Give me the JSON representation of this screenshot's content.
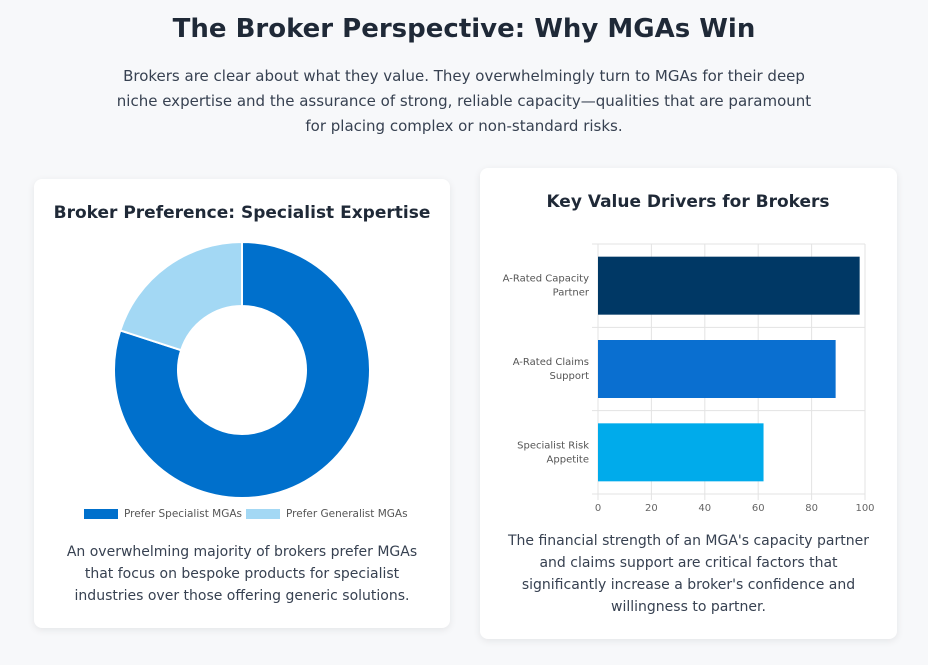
{
  "header": {
    "title": "The Broker Perspective: Why MGAs Win",
    "subtitle": "Brokers are clear about what they value. They overwhelmingly turn to MGAs for their deep niche expertise and the assurance of strong, reliable capacity—qualities that are paramount for placing complex or non-standard risks."
  },
  "chart_data": [
    {
      "type": "doughnut",
      "title": "Broker Preference: Specialist Expertise",
      "categories": [
        "Prefer Specialist MGAs",
        "Prefer Generalist MGAs"
      ],
      "values": [
        80,
        20
      ],
      "colors": [
        "#0070cc",
        "#a3d8f4"
      ],
      "legend": "bottom",
      "caption": "An overwhelming majority of brokers prefer MGAs that focus on bespoke products for specialist industries over those offering generic solutions."
    },
    {
      "type": "hbar",
      "title": "Key Value Drivers for Brokers",
      "categories": [
        "A-Rated Capacity Partner",
        "A-Rated Claims Support",
        "Specialist Risk Appetite"
      ],
      "values": [
        98,
        89,
        62
      ],
      "colors": [
        "#003865",
        "#0a6fd0",
        "#00abeb"
      ],
      "xlim": [
        0,
        100
      ],
      "xticks": [
        0,
        20,
        40,
        60,
        80,
        100
      ],
      "grid": true,
      "caption": "The financial strength of an MGA's capacity partner and claims support are critical factors that significantly increase a broker's confidence and willingness to partner."
    }
  ]
}
